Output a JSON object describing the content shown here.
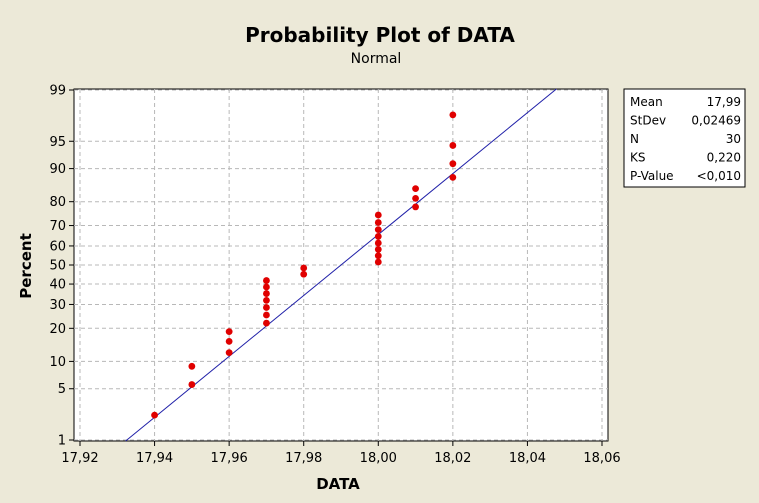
{
  "chart_data": {
    "type": "scatter",
    "title": "Probability Plot of DATA",
    "subtitle": "Normal",
    "xlabel": "DATA",
    "ylabel": "Percent",
    "xlim": [
      17.92,
      18.06
    ],
    "x_ticks": [
      17.92,
      17.94,
      17.96,
      17.98,
      18.0,
      18.02,
      18.04,
      18.06
    ],
    "x_tick_labels": [
      "17,92",
      "17,94",
      "17,96",
      "17,98",
      "18,00",
      "18,02",
      "18,04",
      "18,06"
    ],
    "y_scale": "normal-probability",
    "y_ticks": [
      1,
      5,
      10,
      20,
      30,
      40,
      50,
      60,
      70,
      80,
      90,
      95,
      99
    ],
    "y_tick_labels": [
      "1",
      "5",
      "10",
      "20",
      "30",
      "40",
      "50",
      "60",
      "70",
      "80",
      "90",
      "95",
      "99"
    ],
    "grid": true,
    "marker_color": "#e00000",
    "line_color": "#1f1fa8",
    "fit_line": {
      "mean": 17.99,
      "stdev": 0.02469
    },
    "series": [
      {
        "name": "DATA",
        "x": [
          17.94,
          17.95,
          17.95,
          17.96,
          17.96,
          17.96,
          17.97,
          17.97,
          17.97,
          17.97,
          17.97,
          17.97,
          17.97,
          17.98,
          17.98,
          18.0,
          18.0,
          18.0,
          18.0,
          18.0,
          18.0,
          18.0,
          18.0,
          18.01,
          18.01,
          18.01,
          18.02,
          18.02,
          18.02,
          18.02
        ],
        "y": [
          2.3,
          5.6,
          8.9,
          12.2,
          15.5,
          18.8,
          22.0,
          25.3,
          28.6,
          31.9,
          35.2,
          38.5,
          41.8,
          45.1,
          48.4,
          51.6,
          54.9,
          58.2,
          61.5,
          64.8,
          68.1,
          71.4,
          74.7,
          78.0,
          81.2,
          84.5,
          87.8,
          91.1,
          94.4,
          97.7
        ],
        "note": "legend stats panel"
      }
    ],
    "stats": [
      {
        "label": "Mean",
        "value": "17,99"
      },
      {
        "label": "StDev",
        "value": "0,02469"
      },
      {
        "label": "N",
        "value": "30"
      },
      {
        "label": "KS",
        "value": "0,220"
      },
      {
        "label": "P-Value",
        "value": "<0,010"
      }
    ],
    "legend_position": "right"
  }
}
